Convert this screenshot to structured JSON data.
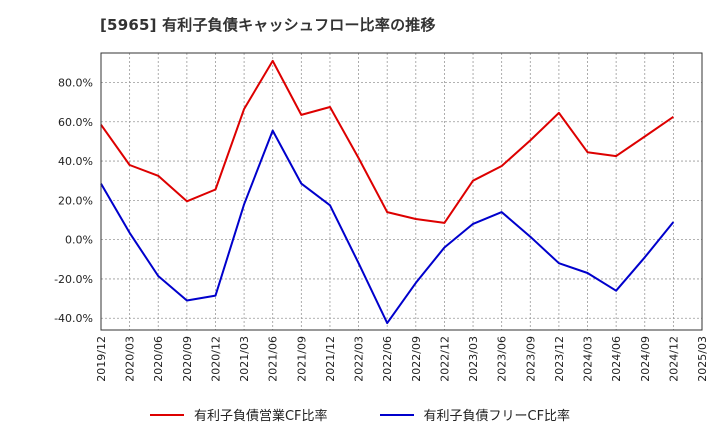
{
  "title": "[5965]  有利子負債キャッシュフロー比率の推移",
  "chart_data": {
    "type": "line",
    "x": [
      "2019/12",
      "2020/03",
      "2020/06",
      "2020/09",
      "2020/12",
      "2021/03",
      "2021/06",
      "2021/09",
      "2021/12",
      "2022/03",
      "2022/06",
      "2022/09",
      "2022/12",
      "2023/03",
      "2023/06",
      "2023/09",
      "2023/12",
      "2024/03",
      "2024/06",
      "2024/09",
      "2024/12",
      "2025/03"
    ],
    "series": [
      {
        "name": "有利子負債営業CF比率",
        "color": "#dd0000",
        "values": [
          58.5,
          38,
          32.5,
          19.5,
          25.5,
          66.5,
          91,
          63.5,
          67.5,
          41.5,
          14,
          10.5,
          8.5,
          30,
          37.5,
          50.5,
          64.5,
          44.5,
          42.5,
          52.5,
          62.5,
          null
        ]
      },
      {
        "name": "有利子負債フリーCF比率",
        "color": "#0000cc",
        "values": [
          28.5,
          3.5,
          -18.5,
          -31,
          -28.5,
          18,
          55.5,
          28.5,
          17.5,
          -12,
          -42.5,
          -22,
          -4,
          8,
          14,
          1.5,
          -12,
          -17,
          -26,
          -9,
          9,
          null
        ]
      }
    ],
    "ylim": [
      -46,
      95
    ],
    "yticks": [
      -40,
      -20,
      0,
      20,
      40,
      60,
      80
    ],
    "ytick_labels": [
      "-40.0%",
      "-20.0%",
      "0.0%",
      "20.0%",
      "40.0%",
      "60.0%",
      "80.0%"
    ],
    "grid": true,
    "legend": "bottom"
  }
}
